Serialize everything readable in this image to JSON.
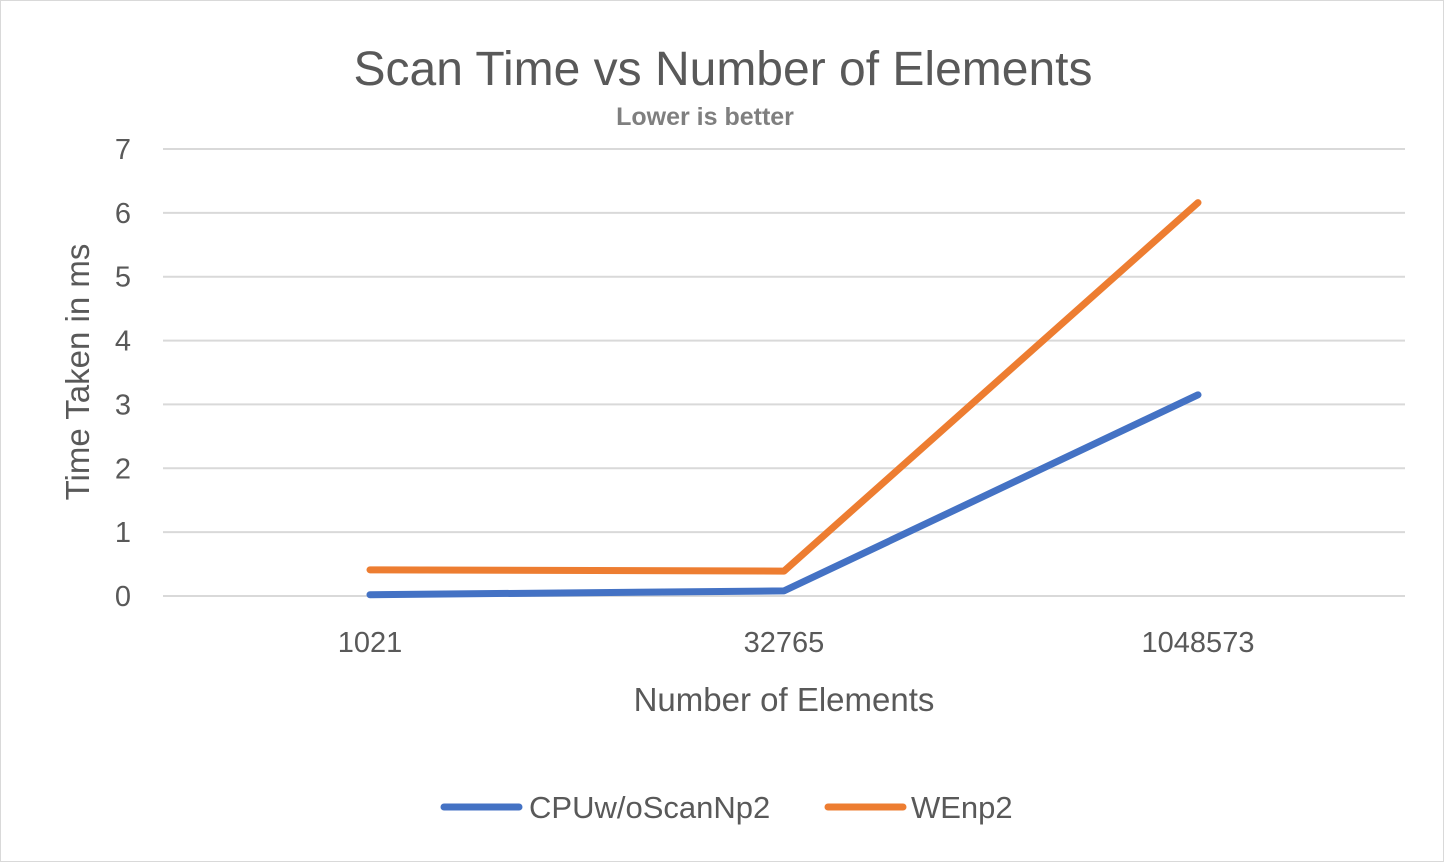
{
  "chart_data": {
    "type": "line",
    "title": "Scan Time vs Number of Elements",
    "subtitle": "Lower is better",
    "xlabel": "Number of Elements",
    "ylabel": "Time Taken in ms",
    "categories": [
      "1021",
      "32765",
      "1048573"
    ],
    "ylim": [
      0,
      7
    ],
    "yticks": [
      0,
      1,
      2,
      3,
      4,
      5,
      6,
      7
    ],
    "grid": true,
    "legend_position": "bottom",
    "series": [
      {
        "name": "CPUw/oScanNp2",
        "color": "#4472c4",
        "values": [
          0.02,
          0.08,
          3.15
        ]
      },
      {
        "name": "WEnp2",
        "color": "#ed7d31",
        "values": [
          0.41,
          0.39,
          6.16
        ]
      }
    ]
  }
}
